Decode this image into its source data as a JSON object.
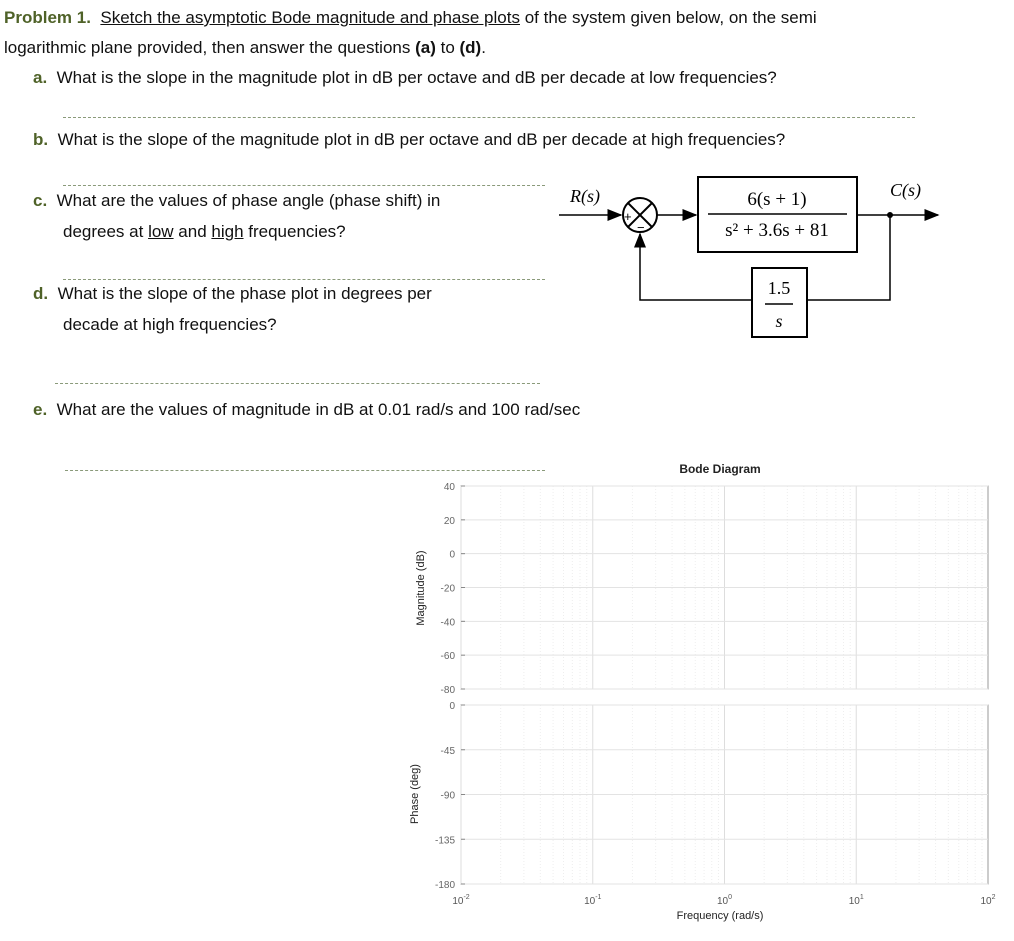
{
  "problem": {
    "label": "Problem 1.",
    "intro_underlined": "Sketch the asymptotic Bode magnitude and phase plots",
    "intro_rest": " of the system given below, on the semi",
    "intro_line2_a": "logarithmic plane provided, then answer the questions ",
    "intro_line2_b": "(a)",
    "intro_line2_c": " to ",
    "intro_line2_d": "(d)",
    "intro_line2_e": "."
  },
  "questions": [
    {
      "label": "a.",
      "text": "What is the slope in the magnitude plot in dB per octave and dB per decade at low frequencies?"
    },
    {
      "label": "b.",
      "text": "What is the slope of the magnitude plot in dB per octave and dB per decade at high frequencies?"
    },
    {
      "label": "c.",
      "line1": "What are the values of phase angle (phase shift) in",
      "line2_a": "degrees at ",
      "low": "low",
      "line2_b": " and ",
      "high": "high",
      "line2_c": " frequencies?"
    },
    {
      "label": "d.",
      "line1": "What is the slope of the phase plot in degrees per",
      "line2": "decade at high frequencies?"
    },
    {
      "label": "e.",
      "text": "What are the values of magnitude in dB at 0.01 rad/s and 100 rad/sec"
    }
  ],
  "block_diagram": {
    "input": "R(s)",
    "output": "C(s)",
    "sum_plus": "+",
    "sum_minus": "−",
    "forward_num": "6(s + 1)",
    "forward_den": "s² + 3.6s + 81",
    "feedback_num": "1.5",
    "feedback_den": "s"
  },
  "chart_data": {
    "type": "line",
    "title": "Bode Diagram",
    "xlabel": "Frequency  (rad/s)",
    "x_scale": "log",
    "xlim": [
      0.01,
      100
    ],
    "x_ticks": [
      "10-2",
      "10-1",
      "100",
      "101",
      "102"
    ],
    "grid": true,
    "panels": [
      {
        "ylabel": "Magnitude (dB)",
        "ylim": [
          -80,
          40
        ],
        "y_ticks": [
          "40",
          "20",
          "0",
          "-20",
          "-40",
          "-60",
          "-80"
        ],
        "series": []
      },
      {
        "ylabel": "Phase (deg)",
        "ylim": [
          -180,
          0
        ],
        "y_ticks": [
          "0",
          "-45",
          "-90",
          "-135",
          "-180"
        ],
        "series": []
      }
    ]
  },
  "colors": {
    "label": "#4F6228",
    "dash": "#8a9a7a"
  }
}
